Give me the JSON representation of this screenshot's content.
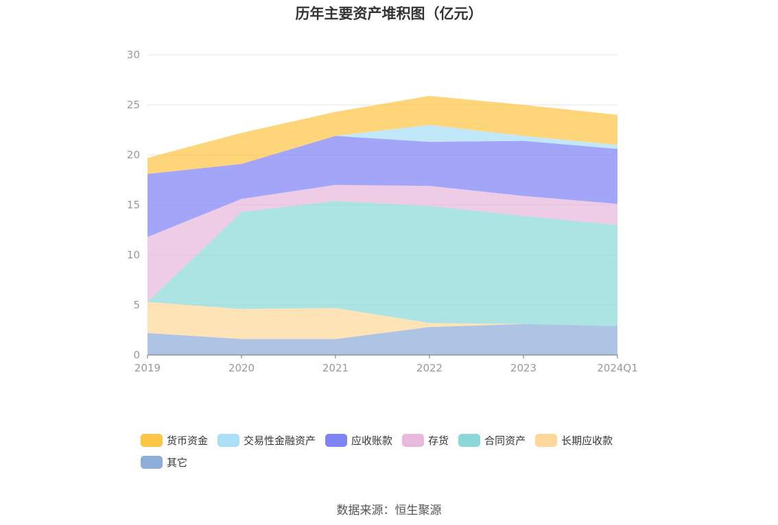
{
  "chart_data": {
    "type": "area",
    "stacked": true,
    "title": "历年主要资产堆积图（亿元）",
    "source": "数据来源：恒生聚源",
    "categories": [
      "2019",
      "2020",
      "2021",
      "2022",
      "2023",
      "2024Q1"
    ],
    "y_ticks": [
      "0",
      "5",
      "10",
      "15",
      "20",
      "25",
      "30"
    ],
    "ylim": [
      0,
      30
    ],
    "grid": true,
    "legend_position": "bottom",
    "series": [
      {
        "name": "其它",
        "color": "#8eadd9",
        "values": [
          2.2,
          1.6,
          1.6,
          2.8,
          3.1,
          2.9
        ]
      },
      {
        "name": "长期应收款",
        "color": "#fdd89a",
        "values": [
          3.1,
          3.0,
          3.1,
          0.4,
          0.0,
          0.0
        ]
      },
      {
        "name": "合同资产",
        "color": "#8cd8d8",
        "values": [
          0.0,
          9.7,
          10.7,
          11.7,
          10.8,
          10.1
        ]
      },
      {
        "name": "存货",
        "color": "#e8b8dd",
        "values": [
          6.5,
          1.3,
          1.6,
          2.0,
          2.0,
          2.1
        ]
      },
      {
        "name": "应收账款",
        "color": "#7f84f5",
        "values": [
          6.3,
          3.5,
          4.9,
          4.4,
          5.5,
          5.5
        ]
      },
      {
        "name": "交易性金融资产",
        "color": "#a9dff7",
        "values": [
          0.0,
          0.0,
          0.0,
          1.7,
          0.5,
          0.4
        ]
      },
      {
        "name": "货币资金",
        "color": "#fdc544",
        "values": [
          1.6,
          3.1,
          2.4,
          2.9,
          3.1,
          3.0
        ]
      }
    ],
    "legend_order": [
      "货币资金",
      "交易性金融资产",
      "应收账款",
      "存货",
      "合同资产",
      "长期应收款",
      "其它"
    ]
  }
}
